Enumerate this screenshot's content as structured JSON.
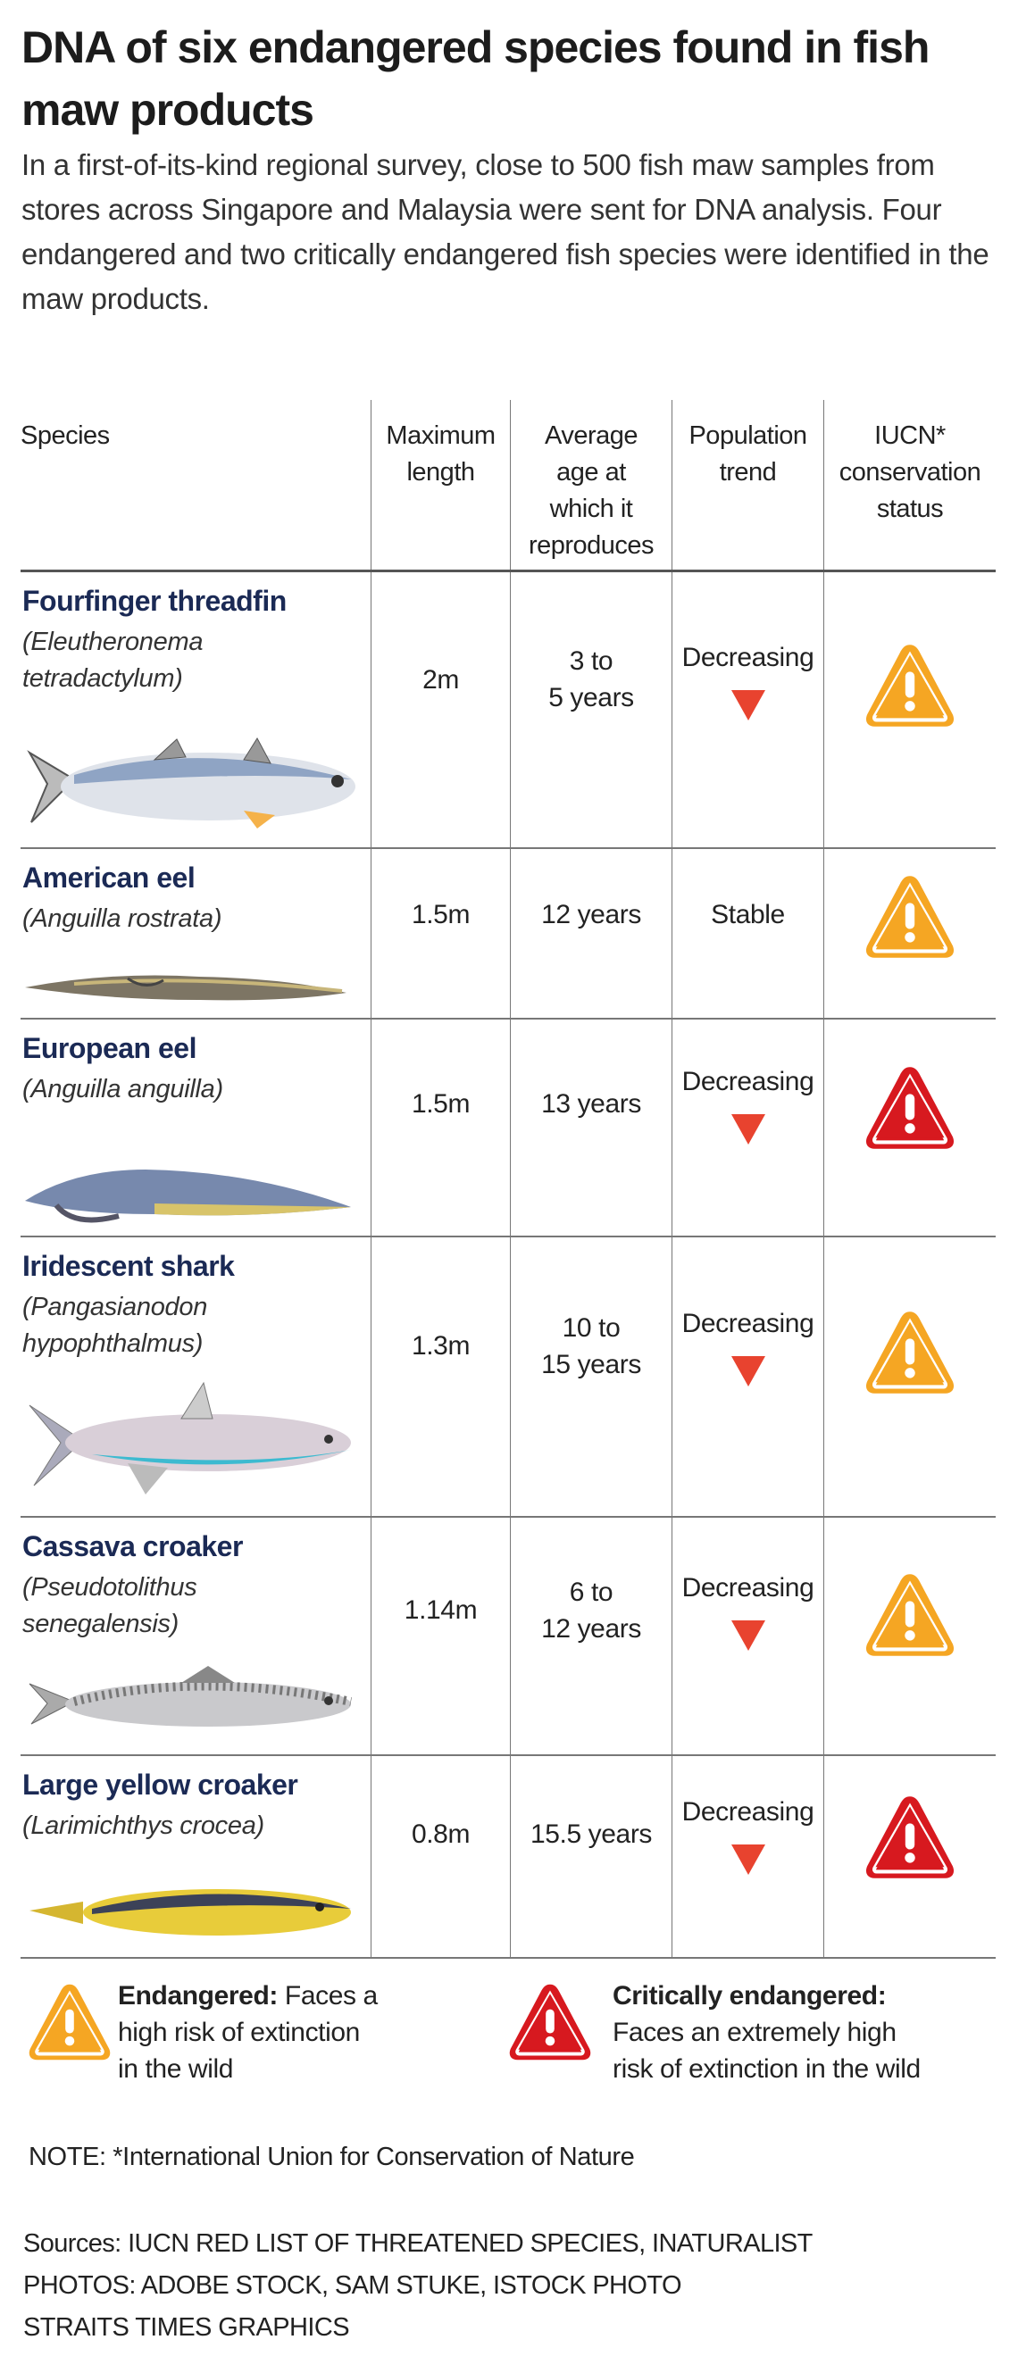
{
  "title": "DNA of six endangered species found in fish maw products",
  "intro": "In a first-of-its-kind regional survey, close to 500 fish maw samples from stores across Singapore and Malaysia were sent for DNA analysis. Four endangered and two critically endangered fish species were identified in the maw products.",
  "headers": [
    "Species",
    "Maximum\nlength",
    "Average\nage at\nwhich it\nreproduces",
    "Population\ntrend",
    "IUCN*\nconservation\nstatus"
  ],
  "colors": {
    "endangered": "#f5a623",
    "critically_endangered": "#d7191f",
    "decreasing_arrow": "#e8432f",
    "species_name": "#1b2a55"
  },
  "rows": [
    {
      "name": "Fourfinger threadfin",
      "scientific": "(Eleutheronema\ntetradactylum)",
      "max_length": "2m",
      "age": "3 to\n5 years",
      "trend": "Decreasing",
      "trend_icon": "down-triangle",
      "status": "endangered"
    },
    {
      "name": "American eel",
      "scientific": "(Anguilla rostrata)",
      "max_length": "1.5m",
      "age": "12 years",
      "trend": "Stable",
      "trend_icon": "",
      "status": "endangered"
    },
    {
      "name": "European eel",
      "scientific": "(Anguilla anguilla)",
      "max_length": "1.5m",
      "age": "13 years",
      "trend": "Decreasing",
      "trend_icon": "down-triangle",
      "status": "critically_endangered"
    },
    {
      "name": "Iridescent shark",
      "scientific": "(Pangasianodon\nhypophthalmus)",
      "max_length": "1.3m",
      "age": "10 to\n15 years",
      "trend": "Decreasing",
      "trend_icon": "down-triangle",
      "status": "endangered"
    },
    {
      "name": "Cassava croaker",
      "scientific": "(Pseudotolithus\nsenegalensis)",
      "max_length": "1.14m",
      "age": "6 to\n12 years",
      "trend": "Decreasing",
      "trend_icon": "down-triangle",
      "status": "endangered"
    },
    {
      "name": "Large yellow croaker",
      "scientific": "(Larimichthys crocea)",
      "max_length": "0.8m",
      "age": "15.5 years",
      "trend": "Decreasing",
      "trend_icon": "down-triangle",
      "status": "critically_endangered"
    }
  ],
  "legend": {
    "endangered_label": "Endangered:",
    "endangered_text": " Faces a\nhigh risk of extinction\nin the wild",
    "critical_label": "Critically endangered:",
    "critical_text": "\nFaces an extremely high\nrisk of extinction in the wild"
  },
  "note": "NOTE: *International Union for Conservation of Nature",
  "sources": [
    "Sources: IUCN RED LIST OF THREATENED SPECIES, INATURALIST",
    "PHOTOS: ADOBE STOCK, SAM STUKE, ISTOCK PHOTO",
    "STRAITS TIMES GRAPHICS"
  ]
}
